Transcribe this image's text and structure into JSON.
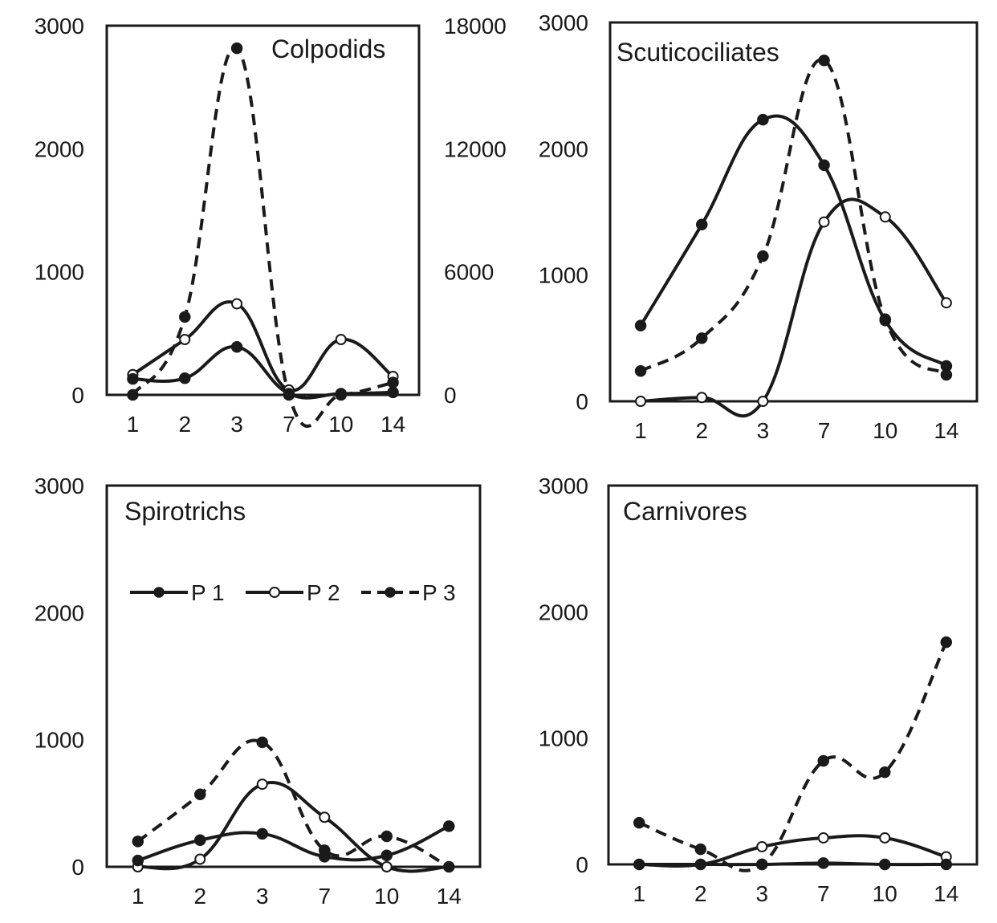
{
  "chart_data": [
    {
      "type": "line",
      "title": "Colpodids",
      "categories": [
        "1",
        "2",
        "3",
        "7",
        "10",
        "14"
      ],
      "ylim": [
        0,
        3000
      ],
      "y_ticks": [
        "0",
        "1000",
        "2000",
        "3000"
      ],
      "y2lim": [
        0,
        18000
      ],
      "y2_ticks": [
        "0",
        "6000",
        "12000",
        "18000"
      ],
      "grid": false,
      "series": [
        {
          "name": "P 1",
          "style": "solid",
          "marker": "filled",
          "values": [
            130,
            135,
            390,
            10,
            10,
            20
          ]
        },
        {
          "name": "P 2",
          "style": "solid",
          "marker": "open",
          "values": [
            165,
            450,
            740,
            40,
            450,
            150
          ]
        },
        {
          "name": "P 3",
          "style": "dashed",
          "marker": "filled",
          "axis": "right",
          "values": [
            0,
            3800,
            16900,
            0,
            0,
            600
          ]
        }
      ]
    },
    {
      "type": "line",
      "title": "Scuticociliates",
      "categories": [
        "1",
        "2",
        "3",
        "7",
        "10",
        "14"
      ],
      "ylim": [
        0,
        3000
      ],
      "y_ticks": [
        "0",
        "1000",
        "2000",
        "3000"
      ],
      "grid": false,
      "series": [
        {
          "name": "P 1",
          "style": "solid",
          "marker": "filled",
          "values": [
            600,
            1400,
            2230,
            1870,
            640,
            280
          ]
        },
        {
          "name": "P 2",
          "style": "solid",
          "marker": "open",
          "values": [
            0,
            30,
            0,
            1420,
            1460,
            780
          ]
        },
        {
          "name": "P 3",
          "style": "dashed",
          "marker": "filled",
          "values": [
            240,
            500,
            1150,
            2700,
            650,
            210
          ]
        }
      ]
    },
    {
      "type": "line",
      "title": "Spirotrichs",
      "categories": [
        "1",
        "2",
        "3",
        "7",
        "10",
        "14"
      ],
      "ylim": [
        0,
        3000
      ],
      "y_ticks": [
        "0",
        "1000",
        "2000",
        "3000"
      ],
      "grid": false,
      "legend": {
        "position": "top-left",
        "entries": [
          "P 1",
          "P 2",
          "P 3"
        ]
      },
      "series": [
        {
          "name": "P 1",
          "style": "solid",
          "marker": "filled",
          "values": [
            50,
            210,
            260,
            80,
            90,
            320
          ]
        },
        {
          "name": "P 2",
          "style": "solid",
          "marker": "open",
          "values": [
            0,
            60,
            650,
            390,
            0,
            0
          ]
        },
        {
          "name": "P 3",
          "style": "dashed",
          "marker": "filled",
          "values": [
            200,
            570,
            980,
            130,
            240,
            0
          ]
        }
      ]
    },
    {
      "type": "line",
      "title": "Carnivores",
      "categories": [
        "1",
        "2",
        "3",
        "7",
        "10",
        "14"
      ],
      "ylim": [
        0,
        3000
      ],
      "y_ticks": [
        "0",
        "1000",
        "2000",
        "3000"
      ],
      "grid": false,
      "series": [
        {
          "name": "P 1",
          "style": "solid",
          "marker": "filled",
          "values": [
            0,
            0,
            0,
            10,
            0,
            0
          ]
        },
        {
          "name": "P 2",
          "style": "solid",
          "marker": "open",
          "values": [
            0,
            0,
            140,
            210,
            210,
            60
          ]
        },
        {
          "name": "P 3",
          "style": "dashed",
          "marker": "filled",
          "values": [
            330,
            120,
            0,
            820,
            730,
            1760
          ]
        }
      ]
    }
  ]
}
